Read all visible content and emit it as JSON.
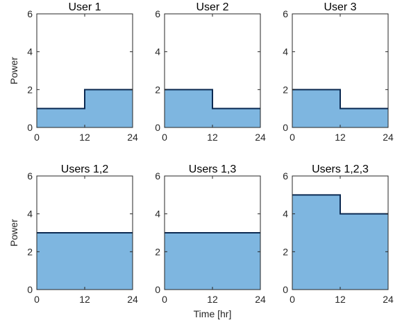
{
  "chart_data": [
    {
      "type": "area",
      "title": "User 1",
      "ylabel": "Power",
      "xlabel": "",
      "xlim": [
        0,
        24
      ],
      "ylim": [
        0,
        6
      ],
      "xticks": [
        0,
        12,
        24
      ],
      "yticks": [
        0,
        2,
        4,
        6
      ],
      "x": [
        0,
        12,
        12,
        24
      ],
      "y": [
        1,
        1,
        2,
        2
      ],
      "grid": false
    },
    {
      "type": "area",
      "title": "User 2",
      "ylabel": "",
      "xlabel": "",
      "xlim": [
        0,
        24
      ],
      "ylim": [
        0,
        6
      ],
      "xticks": [
        0,
        12,
        24
      ],
      "yticks": [
        0,
        2,
        4,
        6
      ],
      "x": [
        0,
        12,
        12,
        24
      ],
      "y": [
        2,
        2,
        1,
        1
      ],
      "grid": false
    },
    {
      "type": "area",
      "title": "User 3",
      "ylabel": "",
      "xlabel": "",
      "xlim": [
        0,
        24
      ],
      "ylim": [
        0,
        6
      ],
      "xticks": [
        0,
        12,
        24
      ],
      "yticks": [
        0,
        2,
        4,
        6
      ],
      "x": [
        0,
        12,
        12,
        24
      ],
      "y": [
        2,
        2,
        1,
        1
      ],
      "grid": false
    },
    {
      "type": "area",
      "title": "Users 1,2",
      "ylabel": "Power",
      "xlabel": "",
      "xlim": [
        0,
        24
      ],
      "ylim": [
        0,
        6
      ],
      "xticks": [
        0,
        12,
        24
      ],
      "yticks": [
        0,
        2,
        4,
        6
      ],
      "x": [
        0,
        12,
        12,
        24
      ],
      "y": [
        3,
        3,
        3,
        3
      ],
      "grid": false
    },
    {
      "type": "area",
      "title": "Users 1,3",
      "ylabel": "",
      "xlabel": "Time [hr]",
      "xlim": [
        0,
        24
      ],
      "ylim": [
        0,
        6
      ],
      "xticks": [
        0,
        12,
        24
      ],
      "yticks": [
        0,
        2,
        4,
        6
      ],
      "x": [
        0,
        12,
        12,
        24
      ],
      "y": [
        3,
        3,
        3,
        3
      ],
      "grid": false
    },
    {
      "type": "area",
      "title": "Users 1,2,3",
      "ylabel": "",
      "xlabel": "",
      "xlim": [
        0,
        24
      ],
      "ylim": [
        0,
        6
      ],
      "xticks": [
        0,
        12,
        24
      ],
      "yticks": [
        0,
        2,
        4,
        6
      ],
      "x": [
        0,
        12,
        12,
        24
      ],
      "y": [
        5,
        5,
        4,
        4
      ],
      "grid": false
    }
  ],
  "style": {
    "fill_color": "#7eb6e0",
    "line_color": "#0b2a52",
    "axis_color": "#262626",
    "background": "#ffffff"
  }
}
